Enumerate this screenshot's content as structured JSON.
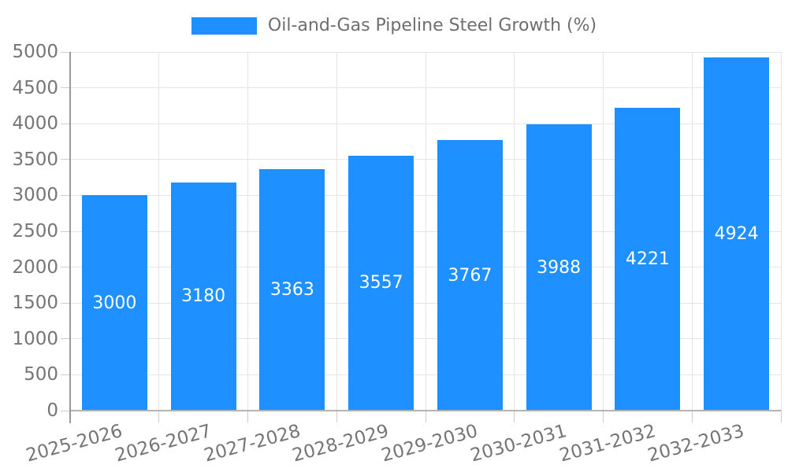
{
  "legend": {
    "label": "Oil-and-Gas Pipeline Steel Growth (%)"
  },
  "colors": {
    "bar_color": "#1e90ff",
    "grid_color": "#e5e5e5",
    "tick_color": "#cccccc",
    "axis_line_color": "#999999",
    "baseline_color": "#b3b3b3",
    "axis_text_color": "#757575",
    "legend_text_color": "#6e6e6e",
    "bar_label_color": "#ffffff"
  },
  "chart_data": {
    "type": "bar",
    "title": "Oil-and-Gas Pipeline Steel Growth (%)",
    "categories": [
      "2025-2026",
      "2026-2027",
      "2027-2028",
      "2028-2029",
      "2029-2030",
      "2030-2031",
      "2031-2032",
      "2032-2033"
    ],
    "values": [
      3000,
      3180,
      3363,
      3557,
      3767,
      3988,
      4221,
      4924
    ],
    "xlabel": "",
    "ylabel": "",
    "ylim": [
      0,
      5000
    ],
    "yticks": [
      0,
      500,
      1000,
      1500,
      2000,
      2500,
      3000,
      3500,
      4000,
      4500,
      5000
    ],
    "grid": true,
    "legend_position": "top-center",
    "value_labels": "inside-center",
    "x_tick_rotation_deg": -15
  }
}
